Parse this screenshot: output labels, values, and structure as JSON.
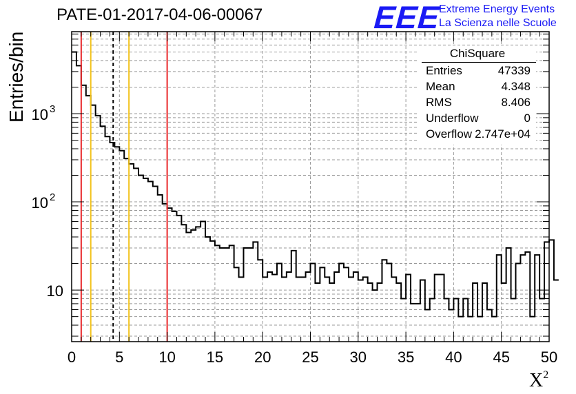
{
  "title": "PATE-01-2017-04-06-00067",
  "logo": {
    "mark": "EEE",
    "line1": "Extreme Energy Events",
    "line2": "La Scienza nelle Scuole"
  },
  "stats": {
    "title": "ChiSquare",
    "rows": [
      {
        "label": "Entries",
        "value": "47339"
      },
      {
        "label": "Mean",
        "value": "4.348"
      },
      {
        "label": "RMS",
        "value": "8.406"
      },
      {
        "label": "Underflow",
        "value": "0"
      },
      {
        "label": "Overflow",
        "value": "2.747e+04"
      }
    ]
  },
  "chart_data": {
    "type": "histogram",
    "xlabel": "X",
    "xlabel_superscript": "2",
    "ylabel": "Entries/bin",
    "xlim": [
      0,
      50
    ],
    "ylim": [
      2.6,
      8500
    ],
    "yscale": "log",
    "grid": true,
    "x_ticks": [
      "0",
      "5",
      "10",
      "15",
      "20",
      "25",
      "30",
      "35",
      "40",
      "45",
      "50"
    ],
    "y_ticks": [
      {
        "value": 10,
        "label": "10"
      },
      {
        "value": 100,
        "label": "10",
        "exp": "2"
      },
      {
        "value": 1000,
        "label": "10",
        "exp": "3"
      }
    ],
    "bin_width": 0.5,
    "bin_start": 0,
    "values": [
      5000,
      3500,
      2100,
      1600,
      1250,
      950,
      720,
      550,
      470,
      420,
      380,
      310,
      270,
      240,
      200,
      185,
      170,
      150,
      120,
      95,
      85,
      78,
      70,
      55,
      45,
      48,
      52,
      60,
      40,
      36,
      32,
      30,
      30,
      32,
      18,
      14,
      30,
      30,
      35,
      22,
      14,
      16,
      15,
      20,
      14,
      16,
      28,
      14,
      14,
      16,
      20,
      12,
      18,
      14,
      12,
      16,
      20,
      18,
      14,
      16,
      13,
      14,
      12,
      10,
      12,
      22,
      20,
      14,
      12,
      8,
      15,
      7,
      7,
      13,
      6,
      8,
      15,
      15,
      8,
      6,
      8,
      5,
      8,
      5,
      12,
      5,
      12,
      6,
      5,
      25,
      12,
      30,
      8,
      20,
      25,
      27,
      5,
      25,
      8,
      35,
      37,
      13
    ],
    "vertical_lines": [
      {
        "x": 1,
        "color": "#e8282a",
        "style": "solid"
      },
      {
        "x": 2,
        "color": "#f2c21b",
        "style": "solid"
      },
      {
        "x": 4.348,
        "color": "#000000",
        "style": "dashed"
      },
      {
        "x": 6,
        "color": "#f2c21b",
        "style": "solid"
      },
      {
        "x": 10,
        "color": "#e8282a",
        "style": "solid"
      }
    ]
  }
}
